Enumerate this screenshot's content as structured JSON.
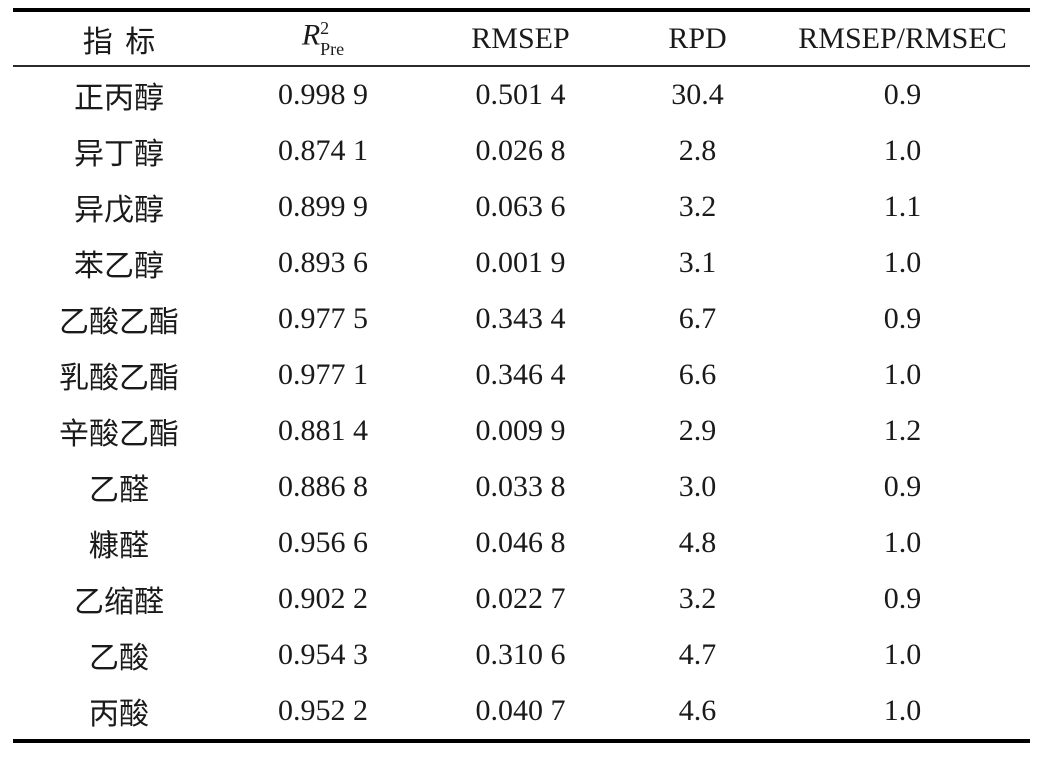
{
  "page": {
    "background_color": "#ffffff",
    "text_color": "#1a1a1a",
    "rule_color": "#000000"
  },
  "table": {
    "header": {
      "indicator": "指标",
      "r2": {
        "base": "R",
        "sup": "2",
        "sub": "Pre"
      },
      "rmsep": "RMSEP",
      "rpd": "RPD",
      "ratio": "RMSEP/RMSEC"
    },
    "rows": [
      {
        "name": "正丙醇",
        "r2pre": "0.998 9",
        "rmsep": "0.501 4",
        "rpd": "30.4",
        "ratio": "0.9"
      },
      {
        "name": "异丁醇",
        "r2pre": "0.874 1",
        "rmsep": "0.026 8",
        "rpd": "2.8",
        "ratio": "1.0"
      },
      {
        "name": "异戊醇",
        "r2pre": "0.899 9",
        "rmsep": "0.063 6",
        "rpd": "3.2",
        "ratio": "1.1"
      },
      {
        "name": "苯乙醇",
        "r2pre": "0.893 6",
        "rmsep": "0.001 9",
        "rpd": "3.1",
        "ratio": "1.0"
      },
      {
        "name": "乙酸乙酯",
        "r2pre": "0.977 5",
        "rmsep": "0.343 4",
        "rpd": "6.7",
        "ratio": "0.9"
      },
      {
        "name": "乳酸乙酯",
        "r2pre": "0.977 1",
        "rmsep": "0.346 4",
        "rpd": "6.6",
        "ratio": "1.0"
      },
      {
        "name": "辛酸乙酯",
        "r2pre": "0.881 4",
        "rmsep": "0.009 9",
        "rpd": "2.9",
        "ratio": "1.2"
      },
      {
        "name": "乙醛",
        "r2pre": "0.886 8",
        "rmsep": "0.033 8",
        "rpd": "3.0",
        "ratio": "0.9"
      },
      {
        "name": "糠醛",
        "r2pre": "0.956 6",
        "rmsep": "0.046 8",
        "rpd": "4.8",
        "ratio": "1.0"
      },
      {
        "name": "乙缩醛",
        "r2pre": "0.902 2",
        "rmsep": "0.022 7",
        "rpd": "3.2",
        "ratio": "0.9"
      },
      {
        "name": "乙酸",
        "r2pre": "0.954 3",
        "rmsep": "0.310 6",
        "rpd": "4.7",
        "ratio": "1.0"
      },
      {
        "name": "丙酸",
        "r2pre": "0.952 2",
        "rmsep": "0.040 7",
        "rpd": "4.6",
        "ratio": "1.0"
      }
    ]
  }
}
